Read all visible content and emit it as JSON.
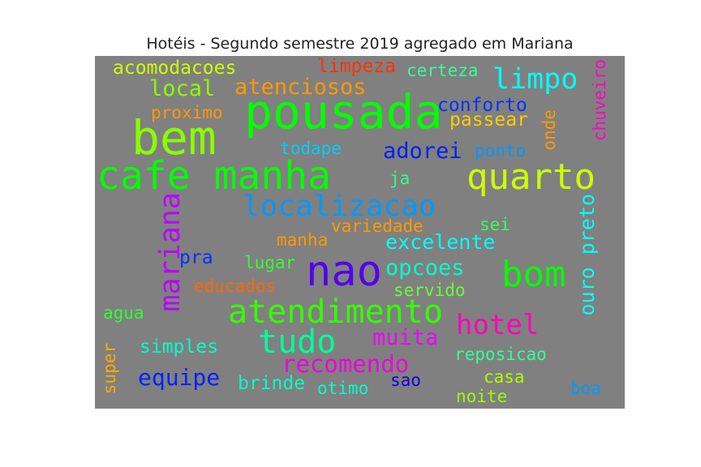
{
  "chart_data": {
    "type": "wordcloud",
    "title": "Hotéis - Segundo semestre 2019 agregado em Mariana",
    "background": "#808080",
    "words": [
      {
        "text": "acomodacoes",
        "color": "#ccff00"
      },
      {
        "text": "limpeza",
        "color": "#ff3300"
      },
      {
        "text": "certeza",
        "color": "#33ff99"
      },
      {
        "text": "local",
        "color": "#88ff00"
      },
      {
        "text": "atenciosos",
        "color": "#ff9900"
      },
      {
        "text": "limpo",
        "color": "#00ffff"
      },
      {
        "text": "chuveiro",
        "color": "#ff00cc"
      },
      {
        "text": "proximo",
        "color": "#ff9900"
      },
      {
        "text": "pousada",
        "color": "#00ff00"
      },
      {
        "text": "conforto",
        "color": "#0033ff"
      },
      {
        "text": "passear",
        "color": "#ffcc00"
      },
      {
        "text": "onde",
        "color": "#ff9900"
      },
      {
        "text": "bem",
        "color": "#88ff00"
      },
      {
        "text": "todape",
        "color": "#00ccff"
      },
      {
        "text": "adorei",
        "color": "#0022ee"
      },
      {
        "text": "ponto",
        "color": "#0099ff"
      },
      {
        "text": "cafe manha",
        "color": "#00ff00"
      },
      {
        "text": "quarto",
        "color": "#ccff00"
      },
      {
        "text": "ja",
        "color": "#33ff88"
      },
      {
        "text": "mariana",
        "color": "#bb00ff"
      },
      {
        "text": "localizacao",
        "color": "#0099ff"
      },
      {
        "text": "variedade",
        "color": "#ff9900"
      },
      {
        "text": "sei",
        "color": "#33ff66"
      },
      {
        "text": "ouro preto",
        "color": "#00ffff"
      },
      {
        "text": "manha",
        "color": "#ff9900"
      },
      {
        "text": "excelente",
        "color": "#00ffff"
      },
      {
        "text": "pra",
        "color": "#0033ff"
      },
      {
        "text": "lugar",
        "color": "#33ff33"
      },
      {
        "text": "nao",
        "color": "#5500ee"
      },
      {
        "text": "opcoes",
        "color": "#00ffcc"
      },
      {
        "text": "bom",
        "color": "#00ff00"
      },
      {
        "text": "educados",
        "color": "#ff6600"
      },
      {
        "text": "servido",
        "color": "#66ff33"
      },
      {
        "text": "agua",
        "color": "#33ff33"
      },
      {
        "text": "atendimento",
        "color": "#33ff00"
      },
      {
        "text": "hotel",
        "color": "#ff00bb"
      },
      {
        "text": "muita",
        "color": "#ee00ff"
      },
      {
        "text": "tudo",
        "color": "#00ff99"
      },
      {
        "text": "simples",
        "color": "#00ffcc"
      },
      {
        "text": "super",
        "color": "#ffaa00"
      },
      {
        "text": "recomendo",
        "color": "#ee00dd"
      },
      {
        "text": "reposicao",
        "color": "#33ff99"
      },
      {
        "text": "equipe",
        "color": "#0022ff"
      },
      {
        "text": "casa",
        "color": "#aaff00"
      },
      {
        "text": "brinde",
        "color": "#00ffcc"
      },
      {
        "text": "sao",
        "color": "#1100dd"
      },
      {
        "text": "otimo",
        "color": "#00ffcc"
      },
      {
        "text": "boa",
        "color": "#0099ff"
      },
      {
        "text": "noite",
        "color": "#99ff00"
      }
    ]
  }
}
